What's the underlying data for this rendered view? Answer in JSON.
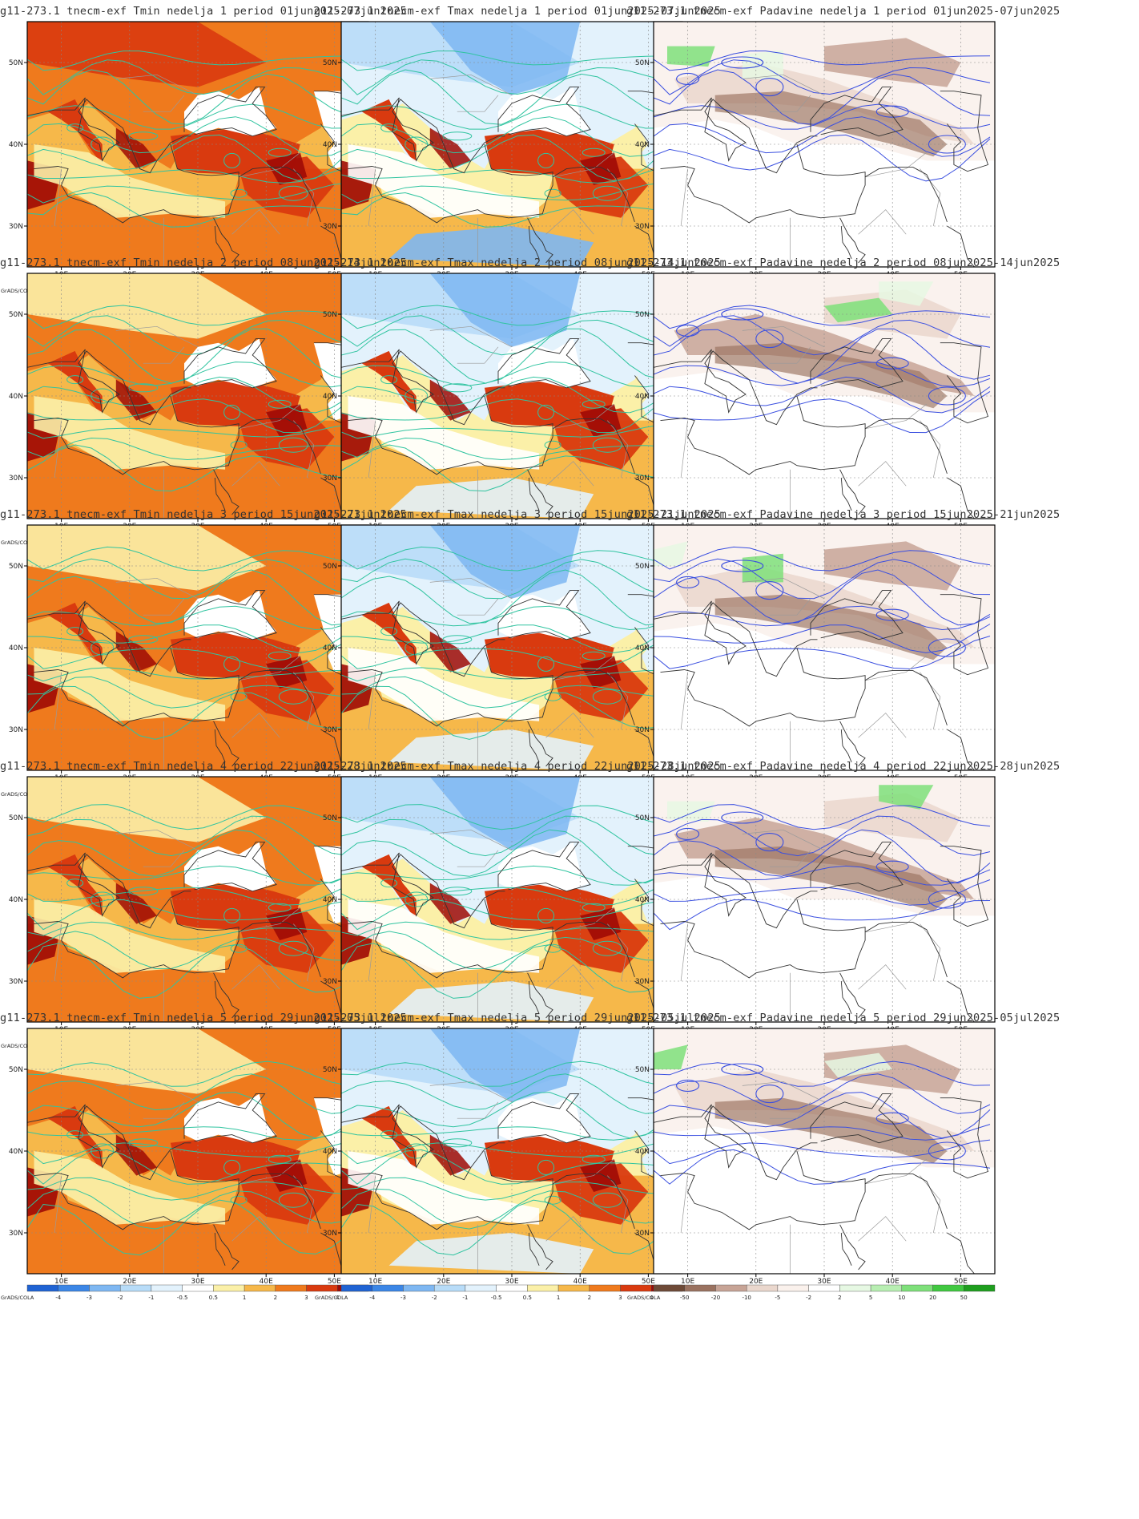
{
  "colors": {
    "temp_scale": [
      "#1f63d3",
      "#3b86e6",
      "#7eb7f2",
      "#b8dcf8",
      "#e3f2fc",
      "#ffffff",
      "#fbf0a8",
      "#f6b84a",
      "#ef7a1d",
      "#d93a0f",
      "#9e0a05"
    ],
    "precip_scale": [
      "#6e4a37",
      "#9a7260",
      "#c7a496",
      "#ead7cd",
      "#faf1ec",
      "#ffffff",
      "#e6f8e3",
      "#b8eeb2",
      "#7ee07a",
      "#40c840",
      "#1e9e1e"
    ],
    "temp_contour": "#30c4a0",
    "precip_contour": "#3a4fe0",
    "border": "#9a9a9a",
    "coast": "#333333"
  },
  "colorbars": {
    "temp_labels": [
      "-4",
      "-3",
      "-2",
      "-1",
      "-0.5",
      "0.5",
      "1",
      "2",
      "3",
      "4"
    ],
    "precip_labels": [
      "-50",
      "-20",
      "-10",
      "-5",
      "-2",
      "2",
      "5",
      "10",
      "20",
      "50"
    ],
    "credit": "GrADS/COLA"
  },
  "axes": {
    "x_ticks": [
      "10E",
      "20E",
      "30E",
      "40E",
      "50E"
    ],
    "y_ticks": [
      "50N",
      "40N",
      "30N"
    ],
    "lon_range": [
      5,
      55
    ],
    "lat_range": [
      25,
      55
    ]
  },
  "rows": [
    {
      "week": 1,
      "titles": [
        "g11-273.1 tnecm-exf Tmin nedelja 1 period 01jun2025-07jun2025",
        "g11-273.1 tnecm-exf Tmax nedelja 1 period 01jun2025-07jun2025",
        "g11-273.1 tnecm-exf Padavine nedelja 1 period 01jun2025-07jun2025"
      ]
    },
    {
      "week": 2,
      "titles": [
        "g11-273.1 tnecm-exf Tmin nedelja 2 period 08jun2025-14jun2025",
        "g11-273.1 tnecm-exf Tmax nedelja 2 period 08jun2025-14jun2025",
        "g11-273.1 tnecm-exf Padavine nedelja 2 period 08jun2025-14jun2025"
      ]
    },
    {
      "week": 3,
      "titles": [
        "g11-273.1 tnecm-exf Tmin nedelja 3 period 15jun2025-21jun2025",
        "g11-273.1 tnecm-exf Tmax nedelja 3 period 15jun2025-21jun2025",
        "g11-273.1 tnecm-exf Padavine nedelja 3 period 15jun2025-21jun2025"
      ]
    },
    {
      "week": 4,
      "titles": [
        "g11-273.1 tnecm-exf Tmin nedelja 4 period 22jun2025-28jun2025",
        "g11-273.1 tnecm-exf Tmax nedelja 4 period 22jun2025-28jun2025",
        "g11-273.1 tnecm-exf Padavine nedelja 4 period 22jun2025-28jun2025"
      ]
    },
    {
      "week": 5,
      "titles": [
        "g11-273.1 tnecm-exf Tmin nedelja 5 period 29jun2025-05jul2025",
        "g11-273.1 tnecm-exf Tmax nedelja 5 period 29jun2025-05jul2025",
        "g11-273.1 tnecm-exf Padavine nedelja 5 period 29jun2025-05jul2025"
      ]
    }
  ],
  "panel_types": [
    "tmin",
    "tmax",
    "precip"
  ]
}
